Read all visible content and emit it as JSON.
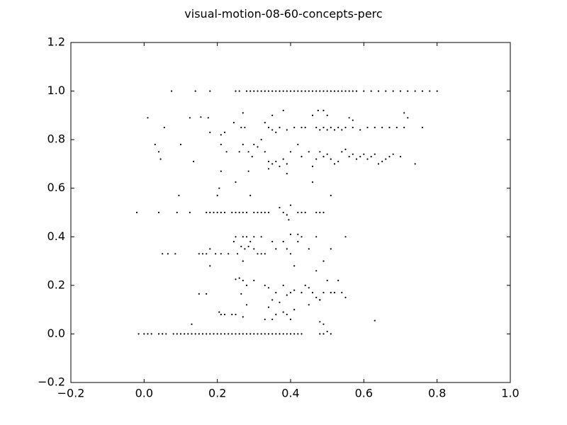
{
  "chart_data": {
    "type": "scatter",
    "title": "visual-motion-08-60-concepts-perc",
    "xlabel": "",
    "ylabel": "",
    "xlim": [
      -0.2,
      1.0
    ],
    "ylim": [
      -0.2,
      1.2
    ],
    "xticks": [
      {
        "value": -0.2,
        "label": "−0.2"
      },
      {
        "value": 0.0,
        "label": "0.0"
      },
      {
        "value": 0.2,
        "label": "0.2"
      },
      {
        "value": 0.4,
        "label": "0.4"
      },
      {
        "value": 0.6,
        "label": "0.6"
      },
      {
        "value": 0.8,
        "label": "0.8"
      },
      {
        "value": 1.0,
        "label": "1.0"
      }
    ],
    "yticks": [
      {
        "value": -0.2,
        "label": "−0.2"
      },
      {
        "value": 0.0,
        "label": "0.0"
      },
      {
        "value": 0.2,
        "label": "0.2"
      },
      {
        "value": 0.4,
        "label": "0.4"
      },
      {
        "value": 0.6,
        "label": "0.6"
      },
      {
        "value": 0.8,
        "label": "0.8"
      },
      {
        "value": 1.0,
        "label": "1.0"
      },
      {
        "value": 1.2,
        "label": "1.2"
      }
    ],
    "grid": false,
    "marker_color": "#000000",
    "points": [
      [
        0.075,
        1.0
      ],
      [
        0.14,
        1.0
      ],
      [
        0.18,
        1.0
      ],
      [
        0.25,
        1.0
      ],
      [
        0.26,
        1.0
      ],
      [
        0.28,
        1.0
      ],
      [
        0.29,
        1.0
      ],
      [
        0.3,
        1.0
      ],
      [
        0.31,
        1.0
      ],
      [
        0.32,
        1.0
      ],
      [
        0.33,
        1.0
      ],
      [
        0.34,
        1.0
      ],
      [
        0.35,
        1.0
      ],
      [
        0.36,
        1.0
      ],
      [
        0.37,
        1.0
      ],
      [
        0.38,
        1.0
      ],
      [
        0.39,
        1.0
      ],
      [
        0.4,
        1.0
      ],
      [
        0.41,
        1.0
      ],
      [
        0.42,
        1.0
      ],
      [
        0.43,
        1.0
      ],
      [
        0.44,
        1.0
      ],
      [
        0.45,
        1.0
      ],
      [
        0.46,
        1.0
      ],
      [
        0.47,
        1.0
      ],
      [
        0.48,
        1.0
      ],
      [
        0.49,
        1.0
      ],
      [
        0.5,
        1.0
      ],
      [
        0.51,
        1.0
      ],
      [
        0.52,
        1.0
      ],
      [
        0.53,
        1.0
      ],
      [
        0.54,
        1.0
      ],
      [
        0.55,
        1.0
      ],
      [
        0.56,
        1.0
      ],
      [
        0.57,
        1.0
      ],
      [
        0.58,
        1.0
      ],
      [
        0.6,
        1.0
      ],
      [
        0.62,
        1.0
      ],
      [
        0.64,
        1.0
      ],
      [
        0.66,
        1.0
      ],
      [
        0.68,
        1.0
      ],
      [
        0.7,
        1.0
      ],
      [
        0.72,
        1.0
      ],
      [
        0.74,
        1.0
      ],
      [
        0.76,
        1.0
      ],
      [
        0.78,
        1.0
      ],
      [
        0.8,
        1.0
      ],
      [
        0.01,
        0.89
      ],
      [
        0.125,
        0.89
      ],
      [
        0.155,
        0.893
      ],
      [
        0.175,
        0.89
      ],
      [
        0.27,
        0.91
      ],
      [
        0.35,
        0.9
      ],
      [
        0.38,
        0.92
      ],
      [
        0.46,
        0.9
      ],
      [
        0.475,
        0.92
      ],
      [
        0.49,
        0.92
      ],
      [
        0.5,
        0.9
      ],
      [
        0.56,
        0.89
      ],
      [
        0.57,
        0.88
      ],
      [
        0.71,
        0.91
      ],
      [
        0.72,
        0.89
      ],
      [
        0.055,
        0.85
      ],
      [
        0.18,
        0.83
      ],
      [
        0.21,
        0.82
      ],
      [
        0.22,
        0.83
      ],
      [
        0.245,
        0.87
      ],
      [
        0.265,
        0.85
      ],
      [
        0.275,
        0.85
      ],
      [
        0.33,
        0.87
      ],
      [
        0.34,
        0.85
      ],
      [
        0.35,
        0.84
      ],
      [
        0.36,
        0.83
      ],
      [
        0.37,
        0.85
      ],
      [
        0.39,
        0.84
      ],
      [
        0.41,
        0.85
      ],
      [
        0.43,
        0.85
      ],
      [
        0.44,
        0.85
      ],
      [
        0.47,
        0.85
      ],
      [
        0.48,
        0.84
      ],
      [
        0.49,
        0.85
      ],
      [
        0.5,
        0.84
      ],
      [
        0.51,
        0.85
      ],
      [
        0.52,
        0.84
      ],
      [
        0.53,
        0.85
      ],
      [
        0.54,
        0.84
      ],
      [
        0.55,
        0.85
      ],
      [
        0.57,
        0.85
      ],
      [
        0.59,
        0.84
      ],
      [
        0.61,
        0.85
      ],
      [
        0.63,
        0.85
      ],
      [
        0.65,
        0.85
      ],
      [
        0.67,
        0.85
      ],
      [
        0.69,
        0.85
      ],
      [
        0.71,
        0.85
      ],
      [
        0.76,
        0.85
      ],
      [
        0.03,
        0.78
      ],
      [
        0.04,
        0.75
      ],
      [
        0.045,
        0.72
      ],
      [
        0.1,
        0.78
      ],
      [
        0.135,
        0.71
      ],
      [
        0.21,
        0.78
      ],
      [
        0.225,
        0.75
      ],
      [
        0.26,
        0.75
      ],
      [
        0.27,
        0.78
      ],
      [
        0.285,
        0.75
      ],
      [
        0.295,
        0.73
      ],
      [
        0.3,
        0.78
      ],
      [
        0.31,
        0.77
      ],
      [
        0.32,
        0.8
      ],
      [
        0.33,
        0.75
      ],
      [
        0.34,
        0.71
      ],
      [
        0.35,
        0.7
      ],
      [
        0.36,
        0.71
      ],
      [
        0.37,
        0.69
      ],
      [
        0.38,
        0.72
      ],
      [
        0.39,
        0.7
      ],
      [
        0.4,
        0.75
      ],
      [
        0.42,
        0.78
      ],
      [
        0.43,
        0.73
      ],
      [
        0.45,
        0.75
      ],
      [
        0.46,
        0.69
      ],
      [
        0.47,
        0.72
      ],
      [
        0.48,
        0.75
      ],
      [
        0.49,
        0.73
      ],
      [
        0.5,
        0.74
      ],
      [
        0.51,
        0.72
      ],
      [
        0.52,
        0.7
      ],
      [
        0.53,
        0.71
      ],
      [
        0.54,
        0.75
      ],
      [
        0.55,
        0.76
      ],
      [
        0.56,
        0.73
      ],
      [
        0.57,
        0.74
      ],
      [
        0.58,
        0.72
      ],
      [
        0.59,
        0.73
      ],
      [
        0.6,
        0.74
      ],
      [
        0.61,
        0.72
      ],
      [
        0.62,
        0.73
      ],
      [
        0.63,
        0.74
      ],
      [
        0.64,
        0.7
      ],
      [
        0.65,
        0.71
      ],
      [
        0.66,
        0.72
      ],
      [
        0.67,
        0.73
      ],
      [
        0.68,
        0.74
      ],
      [
        0.7,
        0.73
      ],
      [
        0.74,
        0.7
      ],
      [
        0.21,
        0.67
      ],
      [
        0.285,
        0.67
      ],
      [
        0.34,
        0.68
      ],
      [
        0.39,
        0.66
      ],
      [
        0.25,
        0.625
      ],
      [
        0.205,
        0.6
      ],
      [
        0.46,
        0.625
      ],
      [
        0.095,
        0.57
      ],
      [
        0.2,
        0.57
      ],
      [
        0.29,
        0.57
      ],
      [
        0.51,
        0.57
      ],
      [
        -0.02,
        0.5
      ],
      [
        0.04,
        0.5
      ],
      [
        0.09,
        0.5
      ],
      [
        0.125,
        0.5
      ],
      [
        0.17,
        0.5
      ],
      [
        0.18,
        0.5
      ],
      [
        0.19,
        0.5
      ],
      [
        0.2,
        0.5
      ],
      [
        0.21,
        0.5
      ],
      [
        0.22,
        0.5
      ],
      [
        0.24,
        0.5
      ],
      [
        0.25,
        0.5
      ],
      [
        0.26,
        0.5
      ],
      [
        0.27,
        0.5
      ],
      [
        0.28,
        0.5
      ],
      [
        0.3,
        0.5
      ],
      [
        0.31,
        0.5
      ],
      [
        0.32,
        0.5
      ],
      [
        0.33,
        0.5
      ],
      [
        0.34,
        0.5
      ],
      [
        0.37,
        0.52
      ],
      [
        0.38,
        0.5
      ],
      [
        0.39,
        0.49
      ],
      [
        0.395,
        0.47
      ],
      [
        0.4,
        0.53
      ],
      [
        0.42,
        0.5
      ],
      [
        0.43,
        0.5
      ],
      [
        0.44,
        0.5
      ],
      [
        0.47,
        0.5
      ],
      [
        0.48,
        0.5
      ],
      [
        0.49,
        0.5
      ],
      [
        0.25,
        0.4
      ],
      [
        0.27,
        0.4
      ],
      [
        0.28,
        0.4
      ],
      [
        0.3,
        0.4
      ],
      [
        0.32,
        0.4
      ],
      [
        0.4,
        0.41
      ],
      [
        0.42,
        0.41
      ],
      [
        0.43,
        0.4
      ],
      [
        0.47,
        0.4
      ],
      [
        0.55,
        0.4
      ],
      [
        0.05,
        0.33
      ],
      [
        0.065,
        0.33
      ],
      [
        0.085,
        0.33
      ],
      [
        0.15,
        0.33
      ],
      [
        0.16,
        0.33
      ],
      [
        0.17,
        0.33
      ],
      [
        0.18,
        0.35
      ],
      [
        0.195,
        0.33
      ],
      [
        0.21,
        0.33
      ],
      [
        0.23,
        0.33
      ],
      [
        0.245,
        0.38
      ],
      [
        0.255,
        0.33
      ],
      [
        0.265,
        0.36
      ],
      [
        0.275,
        0.35
      ],
      [
        0.285,
        0.36
      ],
      [
        0.29,
        0.38
      ],
      [
        0.3,
        0.35
      ],
      [
        0.31,
        0.33
      ],
      [
        0.32,
        0.33
      ],
      [
        0.33,
        0.33
      ],
      [
        0.35,
        0.38
      ],
      [
        0.36,
        0.35
      ],
      [
        0.38,
        0.38
      ],
      [
        0.39,
        0.35
      ],
      [
        0.4,
        0.33
      ],
      [
        0.42,
        0.38
      ],
      [
        0.45,
        0.35
      ],
      [
        0.51,
        0.35
      ],
      [
        0.18,
        0.28
      ],
      [
        0.27,
        0.3
      ],
      [
        0.41,
        0.28
      ],
      [
        0.47,
        0.26
      ],
      [
        0.49,
        0.3
      ],
      [
        0.25,
        0.225
      ],
      [
        0.26,
        0.23
      ],
      [
        0.27,
        0.22
      ],
      [
        0.28,
        0.2
      ],
      [
        0.3,
        0.22
      ],
      [
        0.33,
        0.2
      ],
      [
        0.34,
        0.19
      ],
      [
        0.36,
        0.17
      ],
      [
        0.38,
        0.2
      ],
      [
        0.39,
        0.16
      ],
      [
        0.4,
        0.17
      ],
      [
        0.41,
        0.18
      ],
      [
        0.43,
        0.17
      ],
      [
        0.44,
        0.2
      ],
      [
        0.45,
        0.19
      ],
      [
        0.46,
        0.17
      ],
      [
        0.47,
        0.15
      ],
      [
        0.48,
        0.14
      ],
      [
        0.49,
        0.17
      ],
      [
        0.5,
        0.22
      ],
      [
        0.51,
        0.17
      ],
      [
        0.52,
        0.17
      ],
      [
        0.53,
        0.22
      ],
      [
        0.54,
        0.17
      ],
      [
        0.55,
        0.15
      ],
      [
        0.15,
        0.165
      ],
      [
        0.17,
        0.165
      ],
      [
        0.265,
        0.165
      ],
      [
        0.22,
        0.08
      ],
      [
        0.205,
        0.09
      ],
      [
        0.21,
        0.08
      ],
      [
        0.24,
        0.08
      ],
      [
        0.25,
        0.08
      ],
      [
        0.28,
        0.12
      ],
      [
        0.34,
        0.11
      ],
      [
        0.35,
        0.14
      ],
      [
        0.37,
        0.13
      ],
      [
        0.38,
        0.09
      ],
      [
        0.39,
        0.08
      ],
      [
        0.41,
        0.1
      ],
      [
        0.45,
        0.12
      ],
      [
        0.48,
        0.14
      ],
      [
        0.13,
        0.04
      ],
      [
        0.27,
        0.07
      ],
      [
        0.33,
        0.06
      ],
      [
        0.35,
        0.06
      ],
      [
        0.36,
        0.08
      ],
      [
        0.4,
        0.06
      ],
      [
        0.48,
        0.05
      ],
      [
        0.49,
        0.04
      ],
      [
        0.5,
        0.01
      ],
      [
        0.63,
        0.055
      ],
      [
        -0.015,
        0.0
      ],
      [
        0.0,
        0.0
      ],
      [
        0.01,
        0.0
      ],
      [
        0.02,
        0.0
      ],
      [
        0.04,
        0.0
      ],
      [
        0.05,
        0.0
      ],
      [
        0.06,
        0.0
      ],
      [
        0.08,
        0.0
      ],
      [
        0.09,
        0.0
      ],
      [
        0.1,
        0.0
      ],
      [
        0.11,
        0.0
      ],
      [
        0.12,
        0.0
      ],
      [
        0.13,
        0.0
      ],
      [
        0.14,
        0.0
      ],
      [
        0.15,
        0.0
      ],
      [
        0.16,
        0.0
      ],
      [
        0.17,
        0.0
      ],
      [
        0.18,
        0.0
      ],
      [
        0.19,
        0.0
      ],
      [
        0.2,
        0.0
      ],
      [
        0.21,
        0.0
      ],
      [
        0.22,
        0.0
      ],
      [
        0.23,
        0.0
      ],
      [
        0.24,
        0.0
      ],
      [
        0.25,
        0.0
      ],
      [
        0.26,
        0.0
      ],
      [
        0.27,
        0.0
      ],
      [
        0.28,
        0.0
      ],
      [
        0.29,
        0.0
      ],
      [
        0.3,
        0.0
      ],
      [
        0.31,
        0.0
      ],
      [
        0.32,
        0.0
      ],
      [
        0.33,
        0.0
      ],
      [
        0.34,
        0.0
      ],
      [
        0.35,
        0.0
      ],
      [
        0.36,
        0.0
      ],
      [
        0.37,
        0.0
      ],
      [
        0.38,
        0.0
      ],
      [
        0.39,
        0.0
      ],
      [
        0.4,
        0.0
      ],
      [
        0.41,
        0.0
      ],
      [
        0.42,
        0.0
      ],
      [
        0.43,
        0.0
      ],
      [
        0.48,
        0.0
      ],
      [
        0.49,
        0.0
      ],
      [
        0.51,
        0.0
      ]
    ]
  }
}
